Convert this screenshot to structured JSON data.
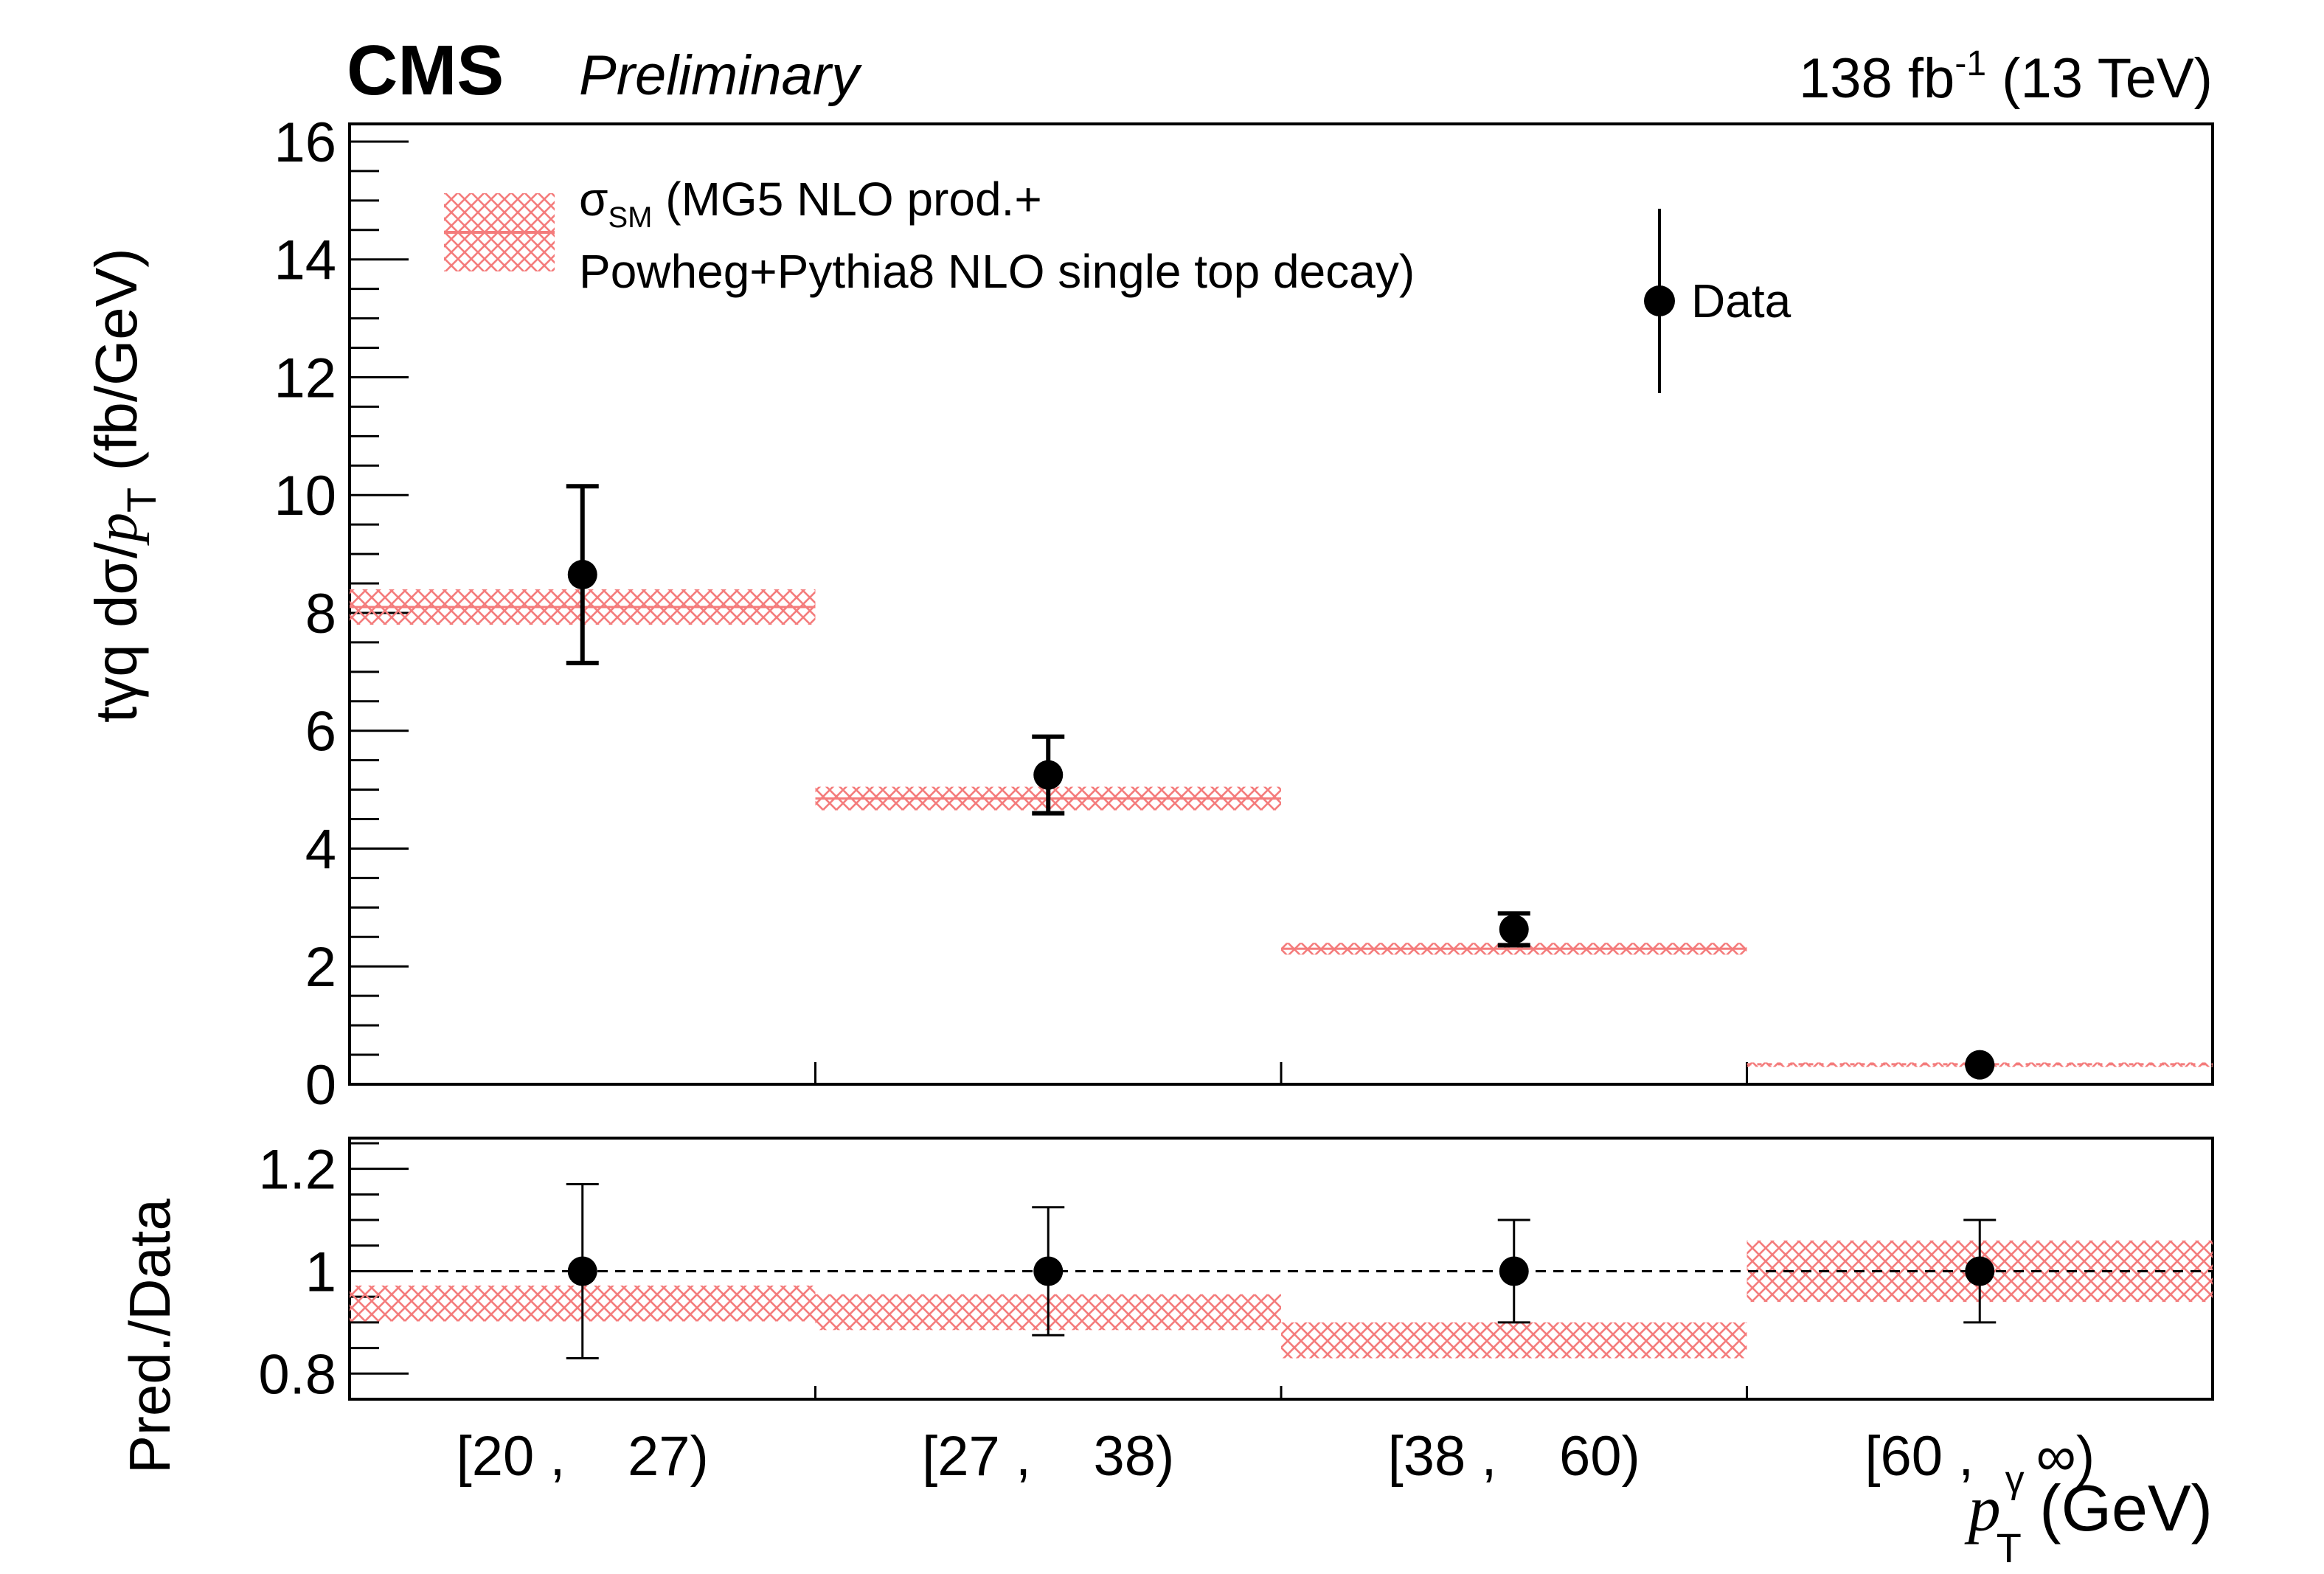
{
  "header": {
    "experiment": "CMS",
    "status": "Preliminary",
    "lumi_value": "138 fb",
    "lumi_exp": "-1",
    "energy": "(13 TeV)"
  },
  "colors": {
    "band": "#f47c7c",
    "data": "#000000",
    "frame": "#000000"
  },
  "chart_data": [
    {
      "type": "scatter",
      "panel": "main",
      "title": "",
      "ylabel": {
        "prefix": "tγq  dσ/",
        "var": "p",
        "sub": "T",
        "suffix": " (fb/GeV)"
      },
      "ylim": [
        0,
        16.3
      ],
      "yticks": [
        "0",
        "2",
        "4",
        "6",
        "8",
        "10",
        "12",
        "14",
        "16"
      ],
      "bins": [
        "[20 ,    27)",
        "[27 ,    38)",
        "[38 ,    60)",
        "[60 ,    ∞)"
      ],
      "series": [
        {
          "name": "Data",
          "values": [
            8.65,
            5.25,
            2.63,
            0.33
          ],
          "err_up": [
            1.5,
            0.65,
            0.27,
            0.03
          ],
          "err_down": [
            1.5,
            0.65,
            0.27,
            0.03
          ]
        },
        {
          "name": "σSM (MG5 NLO prod.+ Powheg+Pythia8 NLO single top decay)",
          "values": [
            8.1,
            4.85,
            2.3,
            0.34
          ],
          "err_up": [
            0.3,
            0.2,
            0.1,
            0.03
          ],
          "err_down": [
            0.3,
            0.2,
            0.1,
            0.03
          ]
        }
      ],
      "legend": {
        "band_sigma": "σ",
        "band_sub": "SM",
        "band_line1": " (MG5 NLO prod.+",
        "band_line2": " Powheg+Pythia8 NLO single top decay)",
        "data": "Data",
        "placement": "top"
      }
    },
    {
      "type": "scatter",
      "panel": "ratio",
      "ylabel": "Pred./Data",
      "ylim": [
        0.75,
        1.26
      ],
      "yticks": [
        "0.8",
        "1",
        "1.2"
      ],
      "reference_line": 1.0,
      "xlabel": {
        "var": "p",
        "sup": "γ",
        "sub": "T",
        "unit": " (GeV)"
      },
      "bins": [
        "[20 ,    27)",
        "[27 ,    38)",
        "[38 ,    60)",
        "[60 ,    ∞)"
      ],
      "series": [
        {
          "name": "Data",
          "values": [
            1.0,
            1.0,
            1.0,
            1.0
          ],
          "err_up": [
            0.17,
            0.125,
            0.1,
            0.1
          ],
          "err_down": [
            0.17,
            0.125,
            0.1,
            0.1
          ]
        },
        {
          "name": "Prediction band",
          "values": [
            0.937,
            0.92,
            0.865,
            1.0
          ],
          "err_up": [
            0.035,
            0.035,
            0.035,
            0.06
          ],
          "err_down": [
            0.035,
            0.035,
            0.035,
            0.06
          ]
        }
      ]
    }
  ]
}
